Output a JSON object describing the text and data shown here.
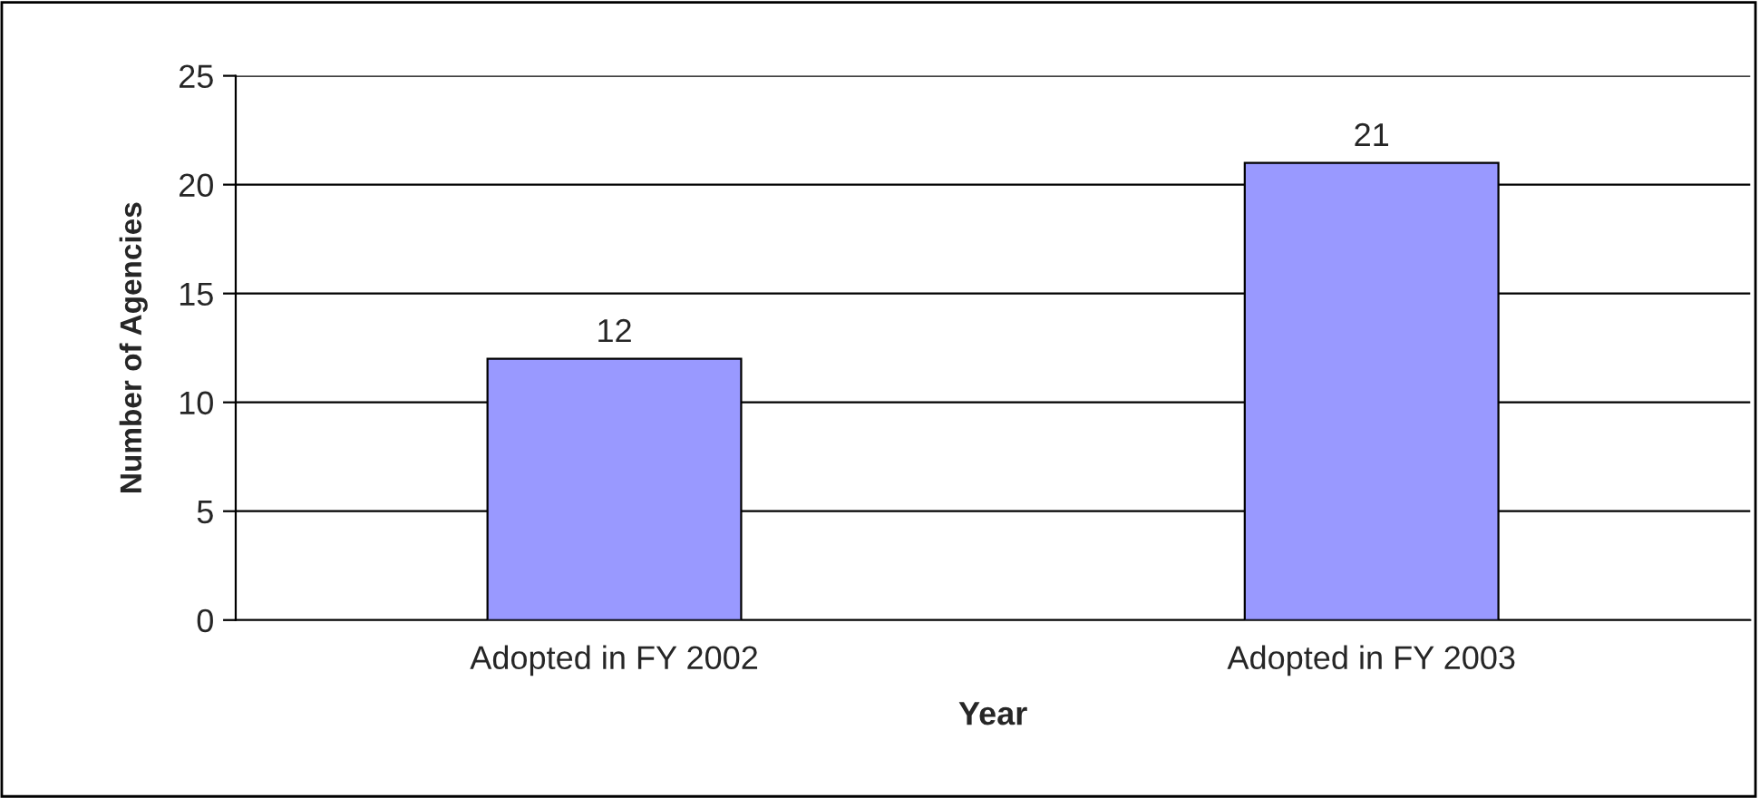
{
  "chart_data": {
    "type": "bar",
    "xlabel": "Year",
    "ylabel": "Number of Agencies",
    "categories": [
      "Adopted in FY 2002",
      "Adopted in FY 2003"
    ],
    "values": [
      12,
      21
    ],
    "color": "#9999ff",
    "ylim": [
      0,
      25
    ],
    "yticks": [
      0,
      5,
      10,
      15,
      20,
      25
    ],
    "grid": "y",
    "data_labels": true
  }
}
